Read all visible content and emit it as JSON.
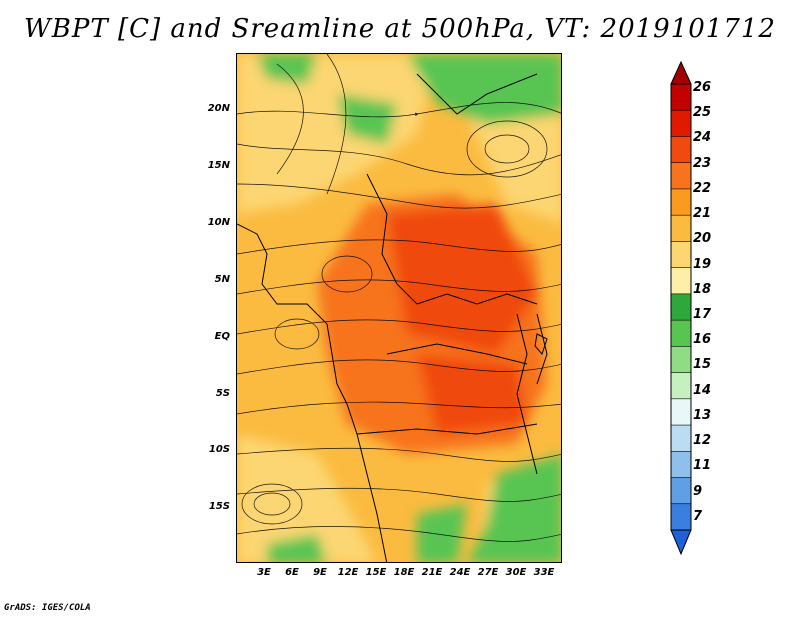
{
  "title": "WBPT [C] and Sreamline at 500hPa, VT: 2019101712",
  "footer": "GrADS: IGES/COLA",
  "lat_labels": [
    "20N",
    "15N",
    "10N",
    "5N",
    "EQ",
    "5S",
    "10S",
    "15S"
  ],
  "lon_labels": [
    "3E",
    "6E",
    "9E",
    "12E",
    "15E",
    "18E",
    "21E",
    "24E",
    "27E",
    "30E",
    "33E"
  ],
  "colorbar": {
    "labels": [
      "26",
      "25",
      "24",
      "23",
      "22",
      "21",
      "20",
      "19",
      "18",
      "17",
      "16",
      "15",
      "14",
      "13",
      "12",
      "11",
      "9",
      "7"
    ],
    "colors": [
      "#a50000",
      "#c20000",
      "#e01a00",
      "#f04a10",
      "#f7731d",
      "#fa9a1e",
      "#fbbb40",
      "#fcd672",
      "#fdeea8",
      "#2ea83a",
      "#58c552",
      "#8fdc84",
      "#c6f0c0",
      "#e8f8f8",
      "#bcdcf4",
      "#8fc0ec",
      "#5fa0e4",
      "#3a7ee0",
      "#1f5fd8"
    ]
  },
  "legend_fields": {
    "variable": "WBPT",
    "units": "C",
    "overlay": "Sreamline",
    "level": "500hPa",
    "valid_time": "2019101712"
  }
}
